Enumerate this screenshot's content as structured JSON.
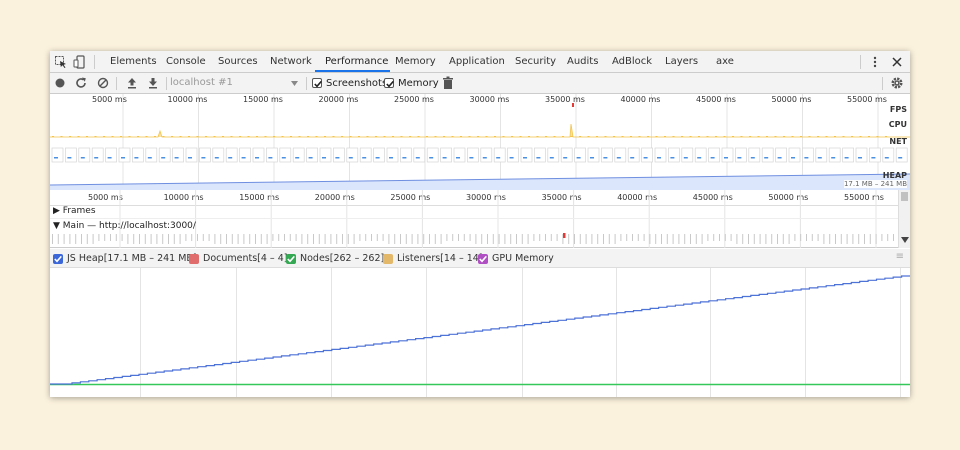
{
  "tabs": [
    {
      "label": "Elements"
    },
    {
      "label": "Console"
    },
    {
      "label": "Sources"
    },
    {
      "label": "Network"
    },
    {
      "label": "Performance",
      "active": true
    },
    {
      "label": "Memory"
    },
    {
      "label": "Application"
    },
    {
      "label": "Security"
    },
    {
      "label": "Audits"
    },
    {
      "label": "AdBlock"
    },
    {
      "label": "Layers"
    },
    {
      "label": "axe"
    }
  ],
  "toolbar": {
    "profile_select": "localhost #1",
    "screenshots_label": "Screenshots",
    "screenshots_checked": true,
    "memory_label": "Memory",
    "memory_checked": true
  },
  "overview": {
    "ticks": [
      "5000 ms",
      "10000 ms",
      "15000 ms",
      "20000 ms",
      "25000 ms",
      "30000 ms",
      "35000 ms",
      "40000 ms",
      "45000 ms",
      "50000 ms",
      "55000 ms"
    ],
    "lanes": {
      "fps": "FPS",
      "cpu": "CPU",
      "net": "NET",
      "heap": "HEAP"
    },
    "heap_range": "17.1 MB – 241 MB"
  },
  "flamechart": {
    "ticks": [
      "5000 ms",
      "10000 ms",
      "15000 ms",
      "20000 ms",
      "25000 ms",
      "30000 ms",
      "35000 ms",
      "40000 ms",
      "45000 ms",
      "50000 ms",
      "55000 ms"
    ],
    "frames_label": "Frames",
    "main_label": "Main — http://localhost:3000/"
  },
  "counters": [
    {
      "label": "JS Heap[17.1 MB – 241 MB]",
      "color": "#3b67d9",
      "checked": true
    },
    {
      "label": "Documents[4 – 4]",
      "color": "#e06c6c",
      "checked": false
    },
    {
      "label": "Nodes[262 – 262]",
      "color": "#34a853",
      "checked": true
    },
    {
      "label": "Listeners[14 – 14]",
      "color": "#e3b86a",
      "checked": false
    },
    {
      "label": "GPU Memory",
      "color": "#b04fc4",
      "checked": true
    }
  ],
  "colors": {
    "accent": "#1a73e8",
    "heap_line": "#4d72d8",
    "nodes_line": "#34c759",
    "cpu_scripting": "#f3c34a"
  }
}
